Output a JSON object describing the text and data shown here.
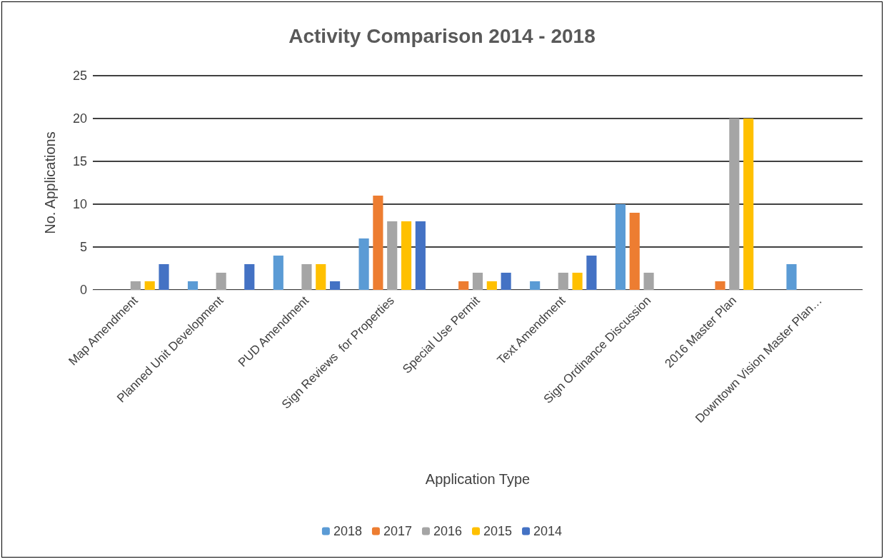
{
  "chart_data": {
    "type": "bar",
    "title": "Activity Comparison 2014 - 2018",
    "xlabel": "Application Type",
    "ylabel": "No. Applications",
    "categories": [
      "Map Amendment",
      "Planned Unit Development",
      "PUD Amendment",
      "Sign Reviews  for Properties",
      "Special Use Permit",
      "Text Amendment",
      "Sign Ordinance Discussion",
      "2016 Master Plan",
      "Downtown Vision Master Plan…"
    ],
    "series": [
      {
        "name": "2018",
        "color": "#5b9bd5",
        "values": [
          null,
          1,
          4,
          6,
          null,
          1,
          10,
          null,
          3
        ]
      },
      {
        "name": "2017",
        "color": "#ed7d31",
        "values": [
          null,
          null,
          null,
          11,
          1,
          null,
          9,
          1,
          null
        ]
      },
      {
        "name": "2016",
        "color": "#a5a5a5",
        "values": [
          1,
          2,
          3,
          8,
          2,
          2,
          2,
          20,
          null
        ]
      },
      {
        "name": "2015",
        "color": "#ffc000",
        "values": [
          1,
          null,
          3,
          8,
          1,
          2,
          null,
          20,
          null
        ]
      },
      {
        "name": "2014",
        "color": "#4472c4",
        "values": [
          3,
          3,
          1,
          8,
          2,
          4,
          null,
          null,
          null
        ]
      }
    ],
    "ylim": [
      0,
      25
    ],
    "yticks": [
      0,
      5,
      10,
      15,
      20,
      25
    ],
    "grid": "y",
    "legend": "bottom"
  }
}
